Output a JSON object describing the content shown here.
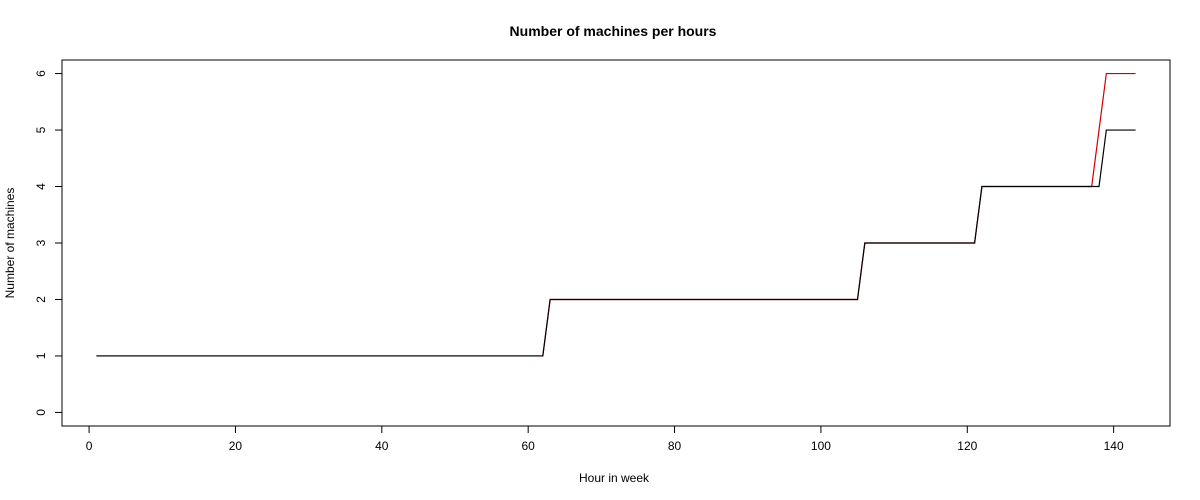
{
  "chart_data": {
    "type": "line",
    "title": "Number of machines per hours",
    "xlabel": "Hour in week",
    "ylabel": "Number of machines",
    "xlim": [
      -3.7,
      147.7
    ],
    "ylim": [
      -0.24,
      6.24
    ],
    "xticks": [
      0,
      20,
      40,
      60,
      80,
      100,
      120,
      140
    ],
    "yticks": [
      0,
      1,
      2,
      3,
      4,
      5,
      6
    ],
    "grid": false,
    "series": [
      {
        "color": "#cc0000",
        "points": [
          [
            1,
            1
          ],
          [
            62,
            1
          ],
          [
            63,
            2
          ],
          [
            105,
            2
          ],
          [
            106,
            3
          ],
          [
            121,
            3
          ],
          [
            122,
            4
          ],
          [
            137,
            4
          ],
          [
            139,
            6
          ],
          [
            143,
            6
          ]
        ]
      },
      {
        "color": "#000000",
        "points": [
          [
            1,
            1
          ],
          [
            62,
            1
          ],
          [
            63,
            2
          ],
          [
            105,
            2
          ],
          [
            106,
            3
          ],
          [
            121,
            3
          ],
          [
            122,
            4
          ],
          [
            138,
            4
          ],
          [
            139,
            5
          ],
          [
            143,
            5
          ]
        ]
      }
    ]
  }
}
